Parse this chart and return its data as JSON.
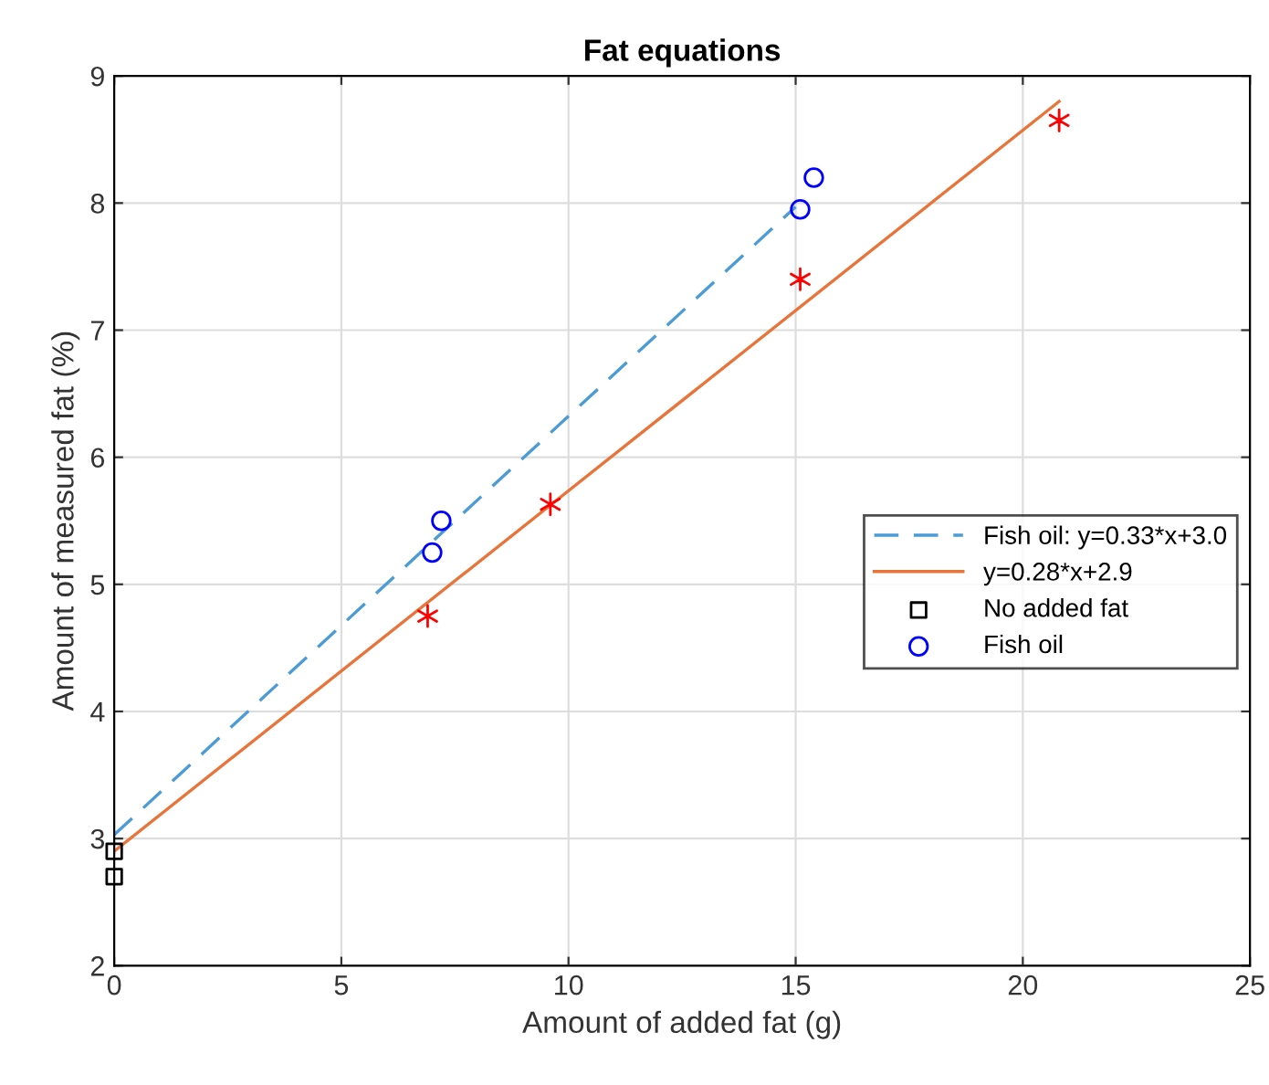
{
  "chart_data": {
    "type": "scatter",
    "title": "Fat equations",
    "xlabel": "Amount of added fat (g)",
    "ylabel": "Amount of measured fat (%)",
    "xlim": [
      0,
      25
    ],
    "xticks": [
      0,
      5,
      10,
      15,
      20,
      25
    ],
    "ylim": [
      2,
      9
    ],
    "yticks": [
      2,
      3,
      4,
      5,
      6,
      7,
      8,
      9
    ],
    "grid": true,
    "legend": "right",
    "series": [
      {
        "name": "Fish oil: y=0.33*x+3.0",
        "type": "line",
        "color": "#4a9bd6",
        "line_style": "dashed",
        "marker": "none",
        "x": [
          0,
          15.0
        ],
        "values": [
          3.03,
          7.97
        ]
      },
      {
        "name": "y=0.28*x+2.9",
        "type": "line",
        "color": "#e8743a",
        "line_style": "solid",
        "marker": "none",
        "x": [
          0,
          20.8
        ],
        "values": [
          2.9,
          8.8
        ]
      },
      {
        "name": "No added fat",
        "color": "#000000",
        "marker": "square",
        "x": [
          0,
          0
        ],
        "values": [
          2.9,
          2.7
        ]
      },
      {
        "name": "Fish oil",
        "color": "#0000ff",
        "marker": "circle",
        "x": [
          7.0,
          7.2,
          15.1,
          15.4
        ],
        "values": [
          5.25,
          5.5,
          7.95,
          8.2
        ]
      },
      {
        "color": "#ff0000",
        "marker": "cross",
        "x": [
          6.9,
          9.6,
          15.1,
          20.8
        ],
        "values": [
          4.75,
          5.63,
          7.4,
          8.65
        ]
      }
    ]
  }
}
